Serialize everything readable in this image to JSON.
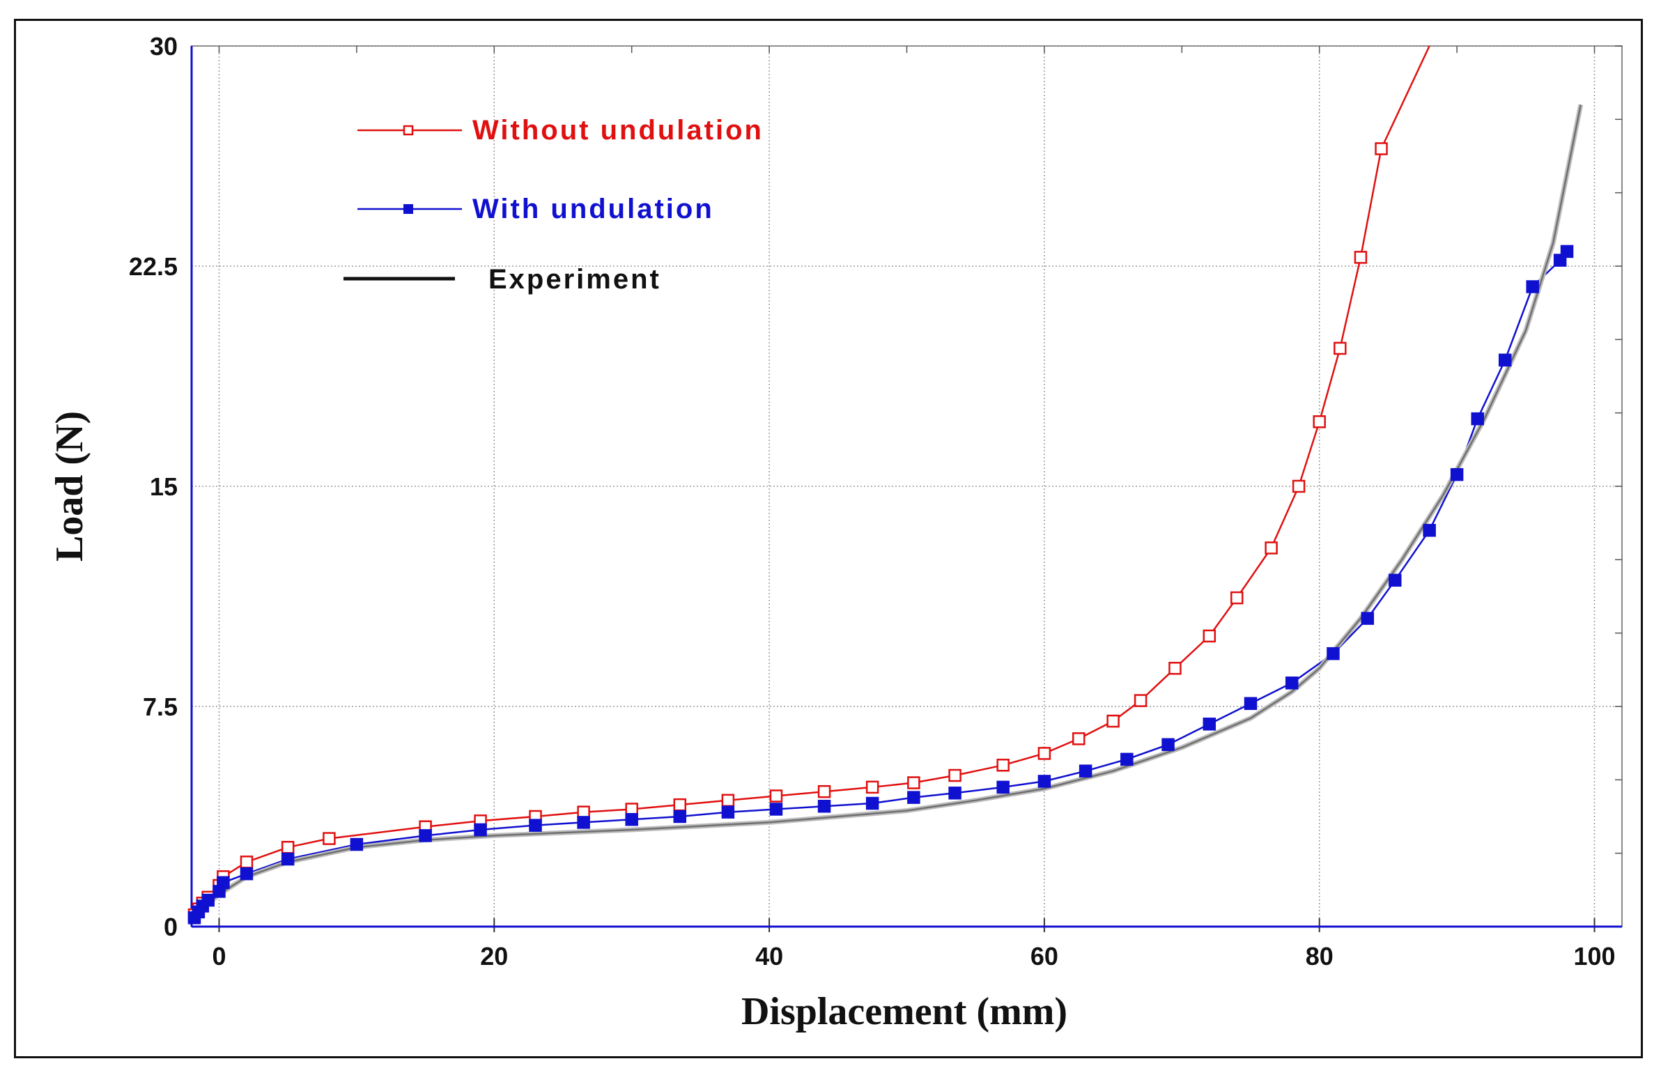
{
  "chart_data": {
    "type": "line",
    "title": "",
    "xlabel": "Displacement (mm)",
    "ylabel": "Load (N)",
    "xlim": [
      -2,
      102
    ],
    "ylim": [
      0,
      30
    ],
    "xticks": [
      0,
      20,
      40,
      60,
      80,
      100
    ],
    "xtick_labels": [
      "0",
      "20",
      "40",
      "60",
      "80",
      "100"
    ],
    "yticks": [
      0,
      7.5,
      15,
      22.5,
      30
    ],
    "ytick_labels": [
      "0",
      "7.5",
      "15",
      "22.5",
      "30"
    ],
    "grid": true,
    "legend_position": "top-left",
    "series": [
      {
        "name": "Without undulation",
        "color": "#e01010",
        "marker": "open-square",
        "x": [
          -1.8,
          -1.5,
          -1.2,
          -0.8,
          0,
          0.3,
          2,
          5,
          8,
          15,
          19,
          23,
          26.5,
          30,
          33.5,
          37,
          40.5,
          44,
          47.5,
          50.5,
          53.5,
          57,
          60,
          62.5,
          65,
          67,
          69.5,
          72,
          74,
          76.5,
          78.5,
          80,
          81.5,
          83,
          84.5
        ],
        "y": [
          0.4,
          0.6,
          0.8,
          1.0,
          1.4,
          1.7,
          2.2,
          2.7,
          3.0,
          3.4,
          3.6,
          3.75,
          3.9,
          4.0,
          4.15,
          4.3,
          4.45,
          4.6,
          4.75,
          4.9,
          5.15,
          5.5,
          5.9,
          6.4,
          7.0,
          7.7,
          8.8,
          9.9,
          11.2,
          12.9,
          15.0,
          17.2,
          19.7,
          22.8,
          26.5
        ],
        "line_end": [
          88,
          30
        ]
      },
      {
        "name": "With undulation",
        "color": "#1010d0",
        "marker": "filled-square",
        "x": [
          -1.8,
          -1.5,
          -1.2,
          -0.8,
          0,
          0.3,
          2,
          5,
          10,
          15,
          19,
          23,
          26.5,
          30,
          33.5,
          37,
          40.5,
          44,
          47.5,
          50.5,
          53.5,
          57,
          60,
          63,
          66,
          69,
          72,
          75,
          78,
          81,
          83.5,
          85.5,
          88,
          90,
          91.5,
          93.5,
          95.5,
          97.5,
          98
        ],
        "y": [
          0.3,
          0.5,
          0.7,
          0.9,
          1.2,
          1.5,
          1.8,
          2.3,
          2.8,
          3.1,
          3.3,
          3.45,
          3.55,
          3.65,
          3.75,
          3.9,
          4.0,
          4.1,
          4.2,
          4.4,
          4.55,
          4.75,
          4.95,
          5.3,
          5.7,
          6.2,
          6.9,
          7.6,
          8.3,
          9.3,
          10.5,
          11.8,
          13.5,
          15.4,
          17.3,
          19.3,
          21.8,
          22.7,
          23.0
        ]
      },
      {
        "name": "Experiment",
        "color": "#707070",
        "marker": "none",
        "x": [
          -1.8,
          -1,
          0,
          2,
          5,
          10,
          15,
          20,
          30,
          40,
          50,
          55,
          60,
          65,
          70,
          75,
          78,
          80,
          83,
          86,
          89,
          92,
          95,
          97,
          99
        ],
        "y": [
          0.2,
          0.7,
          1.1,
          1.7,
          2.2,
          2.7,
          2.95,
          3.1,
          3.3,
          3.55,
          3.95,
          4.3,
          4.7,
          5.3,
          6.1,
          7.1,
          8.0,
          8.8,
          10.5,
          12.5,
          14.7,
          17.3,
          20.3,
          23.3,
          28.0
        ]
      }
    ],
    "legend": {
      "entries": [
        "Without undulation",
        "With undulation",
        "Experiment"
      ]
    }
  }
}
